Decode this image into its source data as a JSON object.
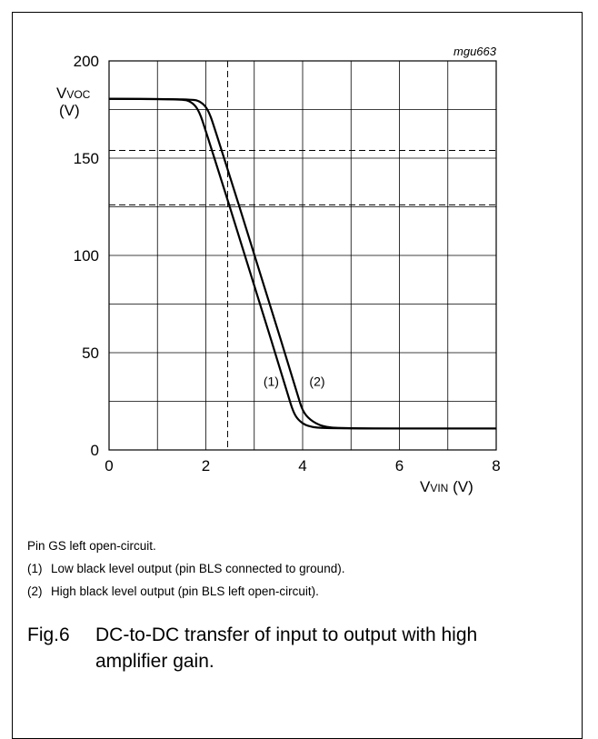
{
  "figure_code": "mgu663",
  "notes": {
    "line1": "Pin GS left open-circuit.",
    "items": [
      {
        "num": "(1)",
        "text": "Low black level output (pin BLS connected to ground)."
      },
      {
        "num": "(2)",
        "text": "High black level output (pin BLS left open-circuit)."
      }
    ]
  },
  "caption": {
    "fig": "Fig.6",
    "text": "DC-to-DC transfer of input to output with high amplifier gain."
  },
  "axis_labels": {
    "y_main": "V",
    "y_sub": "VOC",
    "y_unit": "(V)",
    "x_main": "V",
    "x_sub": "VIN",
    "x_unit": "(V)"
  },
  "chart_data": {
    "type": "line",
    "title": "",
    "xlim": [
      0,
      8
    ],
    "ylim": [
      0,
      200
    ],
    "xticks": [
      0,
      2,
      4,
      6,
      8
    ],
    "yticks": [
      0,
      50,
      100,
      150,
      200
    ],
    "grid": true,
    "grid_x_step": 1,
    "grid_y_step": 25,
    "reference_lines": {
      "vertical_x": [
        2.45
      ],
      "horizontal_y": [
        154,
        126
      ]
    },
    "series": [
      {
        "name": "(1)",
        "x": [
          0,
          1.5,
          1.7,
          1.85,
          2.0,
          3.0,
          3.7,
          3.8,
          3.9,
          4.1,
          4.5,
          8
        ],
        "y": [
          180.5,
          180.5,
          179,
          175,
          164,
          85,
          28,
          20,
          15.5,
          12,
          11,
          11
        ]
      },
      {
        "name": "(2)",
        "x": [
          0,
          1.7,
          1.9,
          2.05,
          2.2,
          3.2,
          3.9,
          4.0,
          4.15,
          4.4,
          4.8,
          8
        ],
        "y": [
          180.5,
          180.5,
          179,
          175,
          164,
          85,
          28,
          20,
          15.5,
          12,
          11,
          11
        ]
      }
    ],
    "series_label_positions": [
      {
        "x": 3.35,
        "y": 33
      },
      {
        "x": 4.3,
        "y": 33
      }
    ]
  }
}
